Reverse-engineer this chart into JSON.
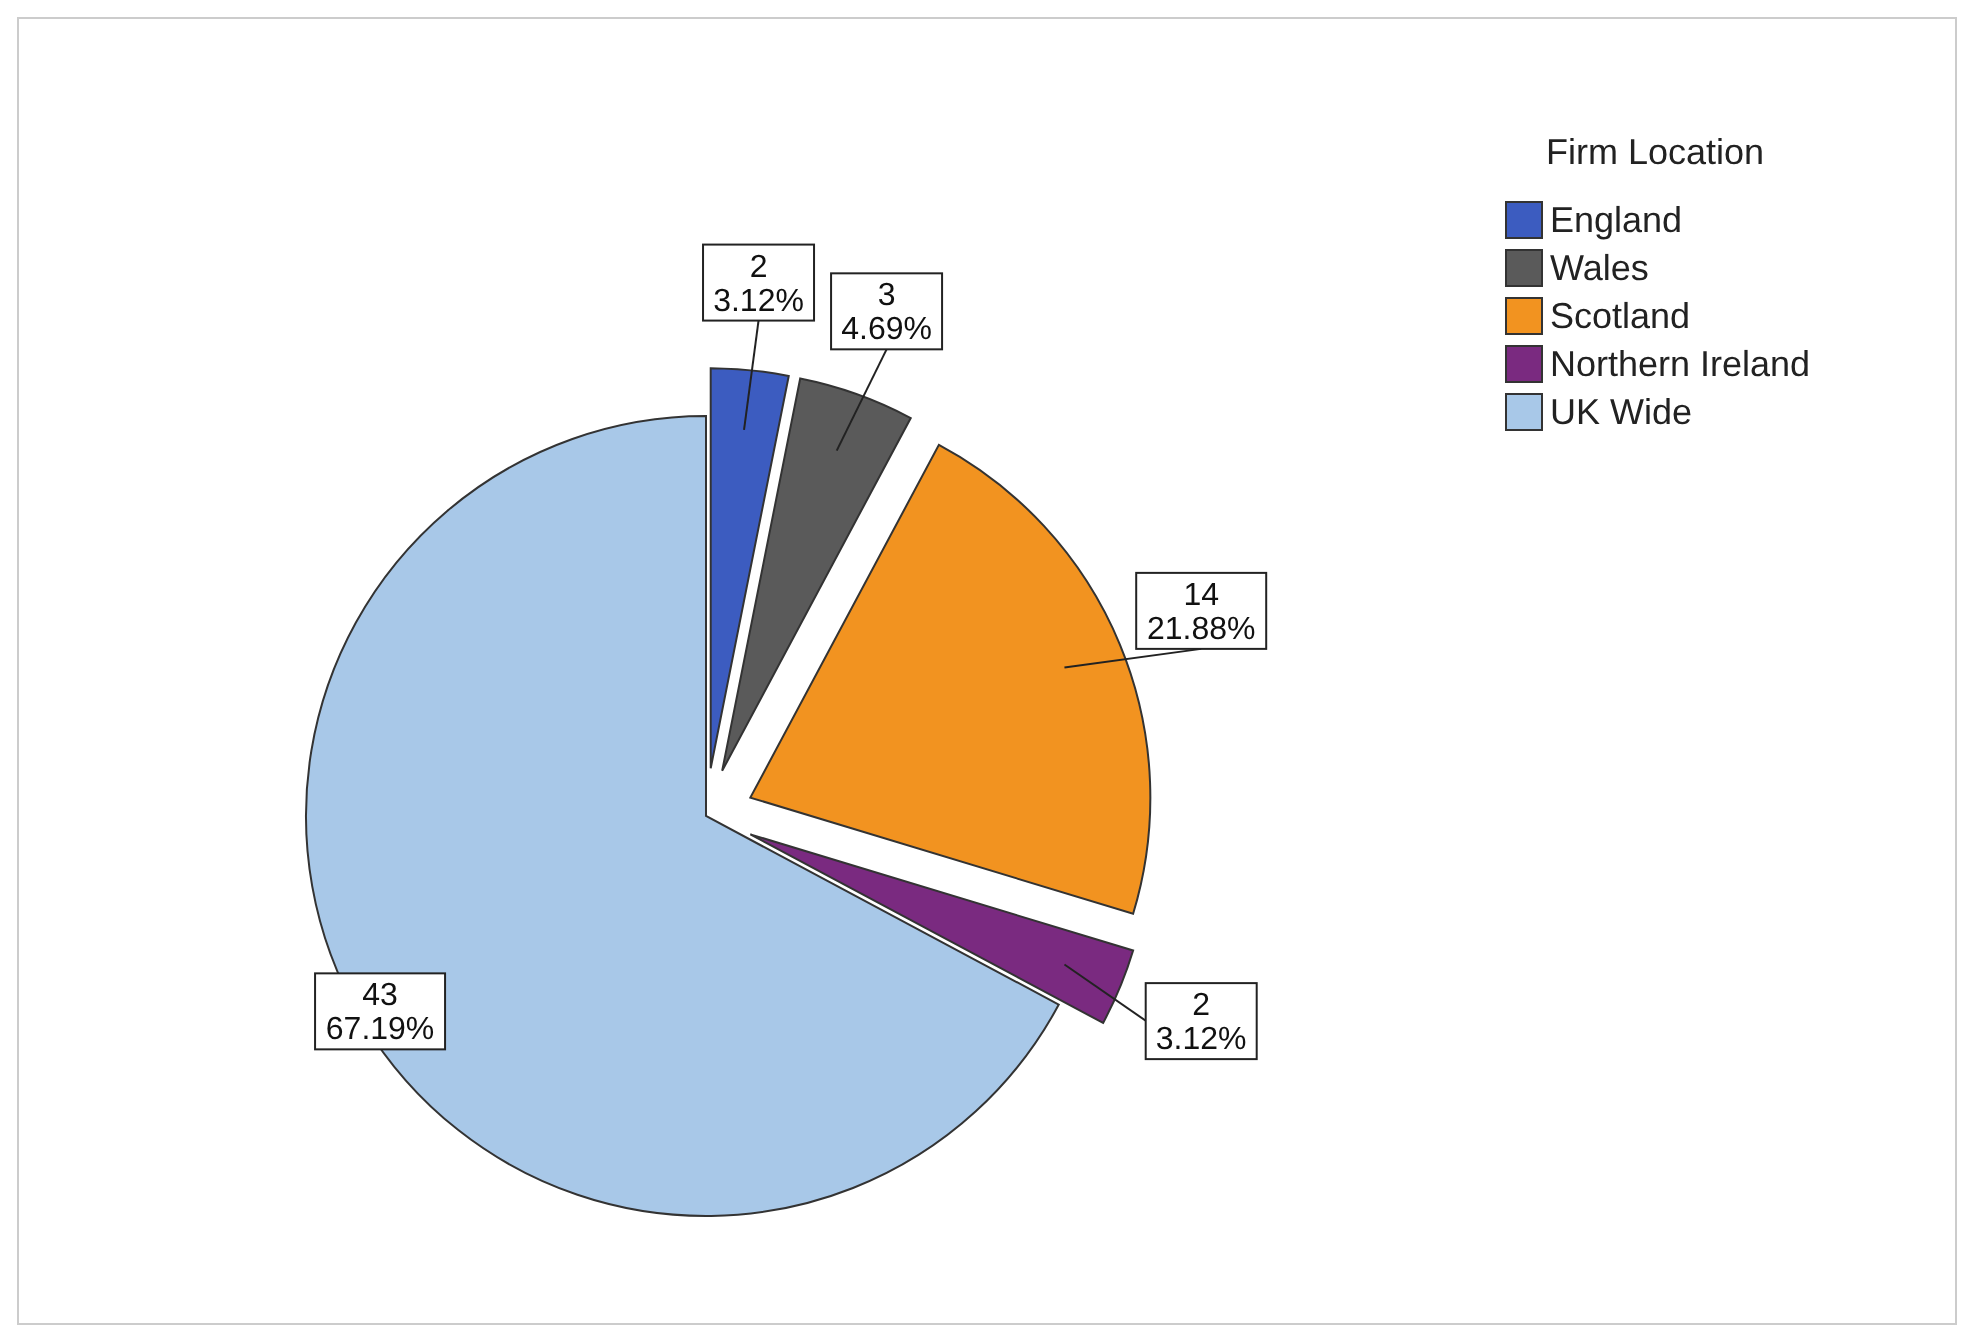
{
  "chart_data": {
    "type": "pie",
    "legend_title": "Firm Location",
    "legend": "top right",
    "categories": [
      "England",
      "Wales",
      "Scotland",
      "Northern Ireland",
      "UK Wide"
    ],
    "values": [
      2,
      3,
      14,
      2,
      43
    ],
    "colors": [
      "#3c5cc0",
      "#5a5a5a",
      "#f29320",
      "#7a2a80",
      "#a8c8e8"
    ],
    "value_labels": [
      "2\n3.12%",
      "3\n4.69%",
      "14\n21.88%",
      "2\n3.12%",
      "43\n67.19%"
    ]
  }
}
